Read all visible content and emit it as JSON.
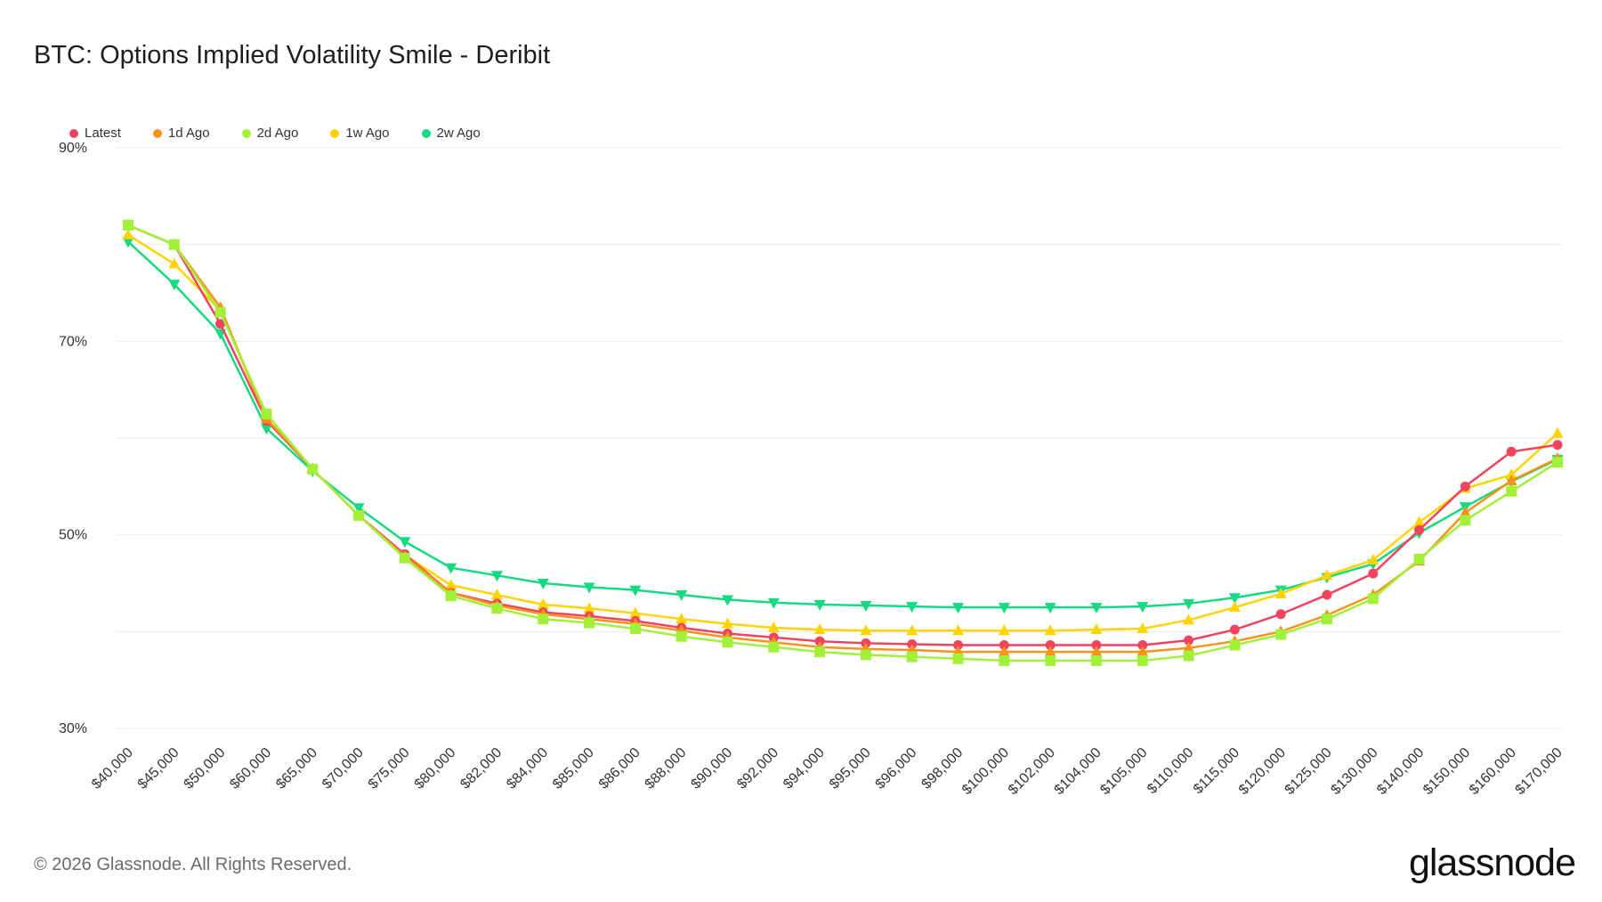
{
  "title": "BTC: Options Implied Volatility Smile - Deribit",
  "footer": "© 2026 Glassnode. All Rights Reserved.",
  "logo": "glassnode",
  "chart_data": {
    "type": "line",
    "title": "BTC: Options Implied Volatility Smile - Deribit",
    "xlabel": "",
    "ylabel": "",
    "ylim": [
      30,
      90
    ],
    "y_ticks": [
      "30%",
      "50%",
      "70%",
      "90%"
    ],
    "grid": true,
    "legend_position": "top-left",
    "categories": [
      "$40,000",
      "$45,000",
      "$50,000",
      "$60,000",
      "$65,000",
      "$70,000",
      "$75,000",
      "$80,000",
      "$82,000",
      "$84,000",
      "$85,000",
      "$86,000",
      "$88,000",
      "$90,000",
      "$92,000",
      "$94,000",
      "$95,000",
      "$96,000",
      "$98,000",
      "$100,000",
      "$102,000",
      "$104,000",
      "$105,000",
      "$110,000",
      "$115,000",
      "$120,000",
      "$125,000",
      "$130,000",
      "$140,000",
      "$150,000",
      "$160,000",
      "$170,000"
    ],
    "series": [
      {
        "name": "Latest",
        "color": "#f0435e",
        "marker": "circle",
        "values": [
          82.0,
          80.0,
          71.8,
          61.8,
          56.8,
          52.0,
          48.0,
          44.0,
          42.9,
          42.0,
          41.6,
          41.1,
          40.4,
          39.8,
          39.4,
          39.0,
          38.8,
          38.7,
          38.6,
          38.6,
          38.6,
          38.6,
          38.6,
          39.1,
          40.2,
          41.8,
          43.8,
          46.0,
          50.5,
          55.0,
          58.6,
          59.3
        ]
      },
      {
        "name": "1d Ago",
        "color": "#f7931a",
        "marker": "triangle",
        "values": [
          82.0,
          80.0,
          73.5,
          62.0,
          56.8,
          52.0,
          47.8,
          44.0,
          42.7,
          41.8,
          41.3,
          40.8,
          40.1,
          39.4,
          38.9,
          38.4,
          38.2,
          38.1,
          37.9,
          37.9,
          37.9,
          37.9,
          37.9,
          38.3,
          39.0,
          40.0,
          41.7,
          43.8,
          47.3,
          52.3,
          55.6,
          57.9
        ]
      },
      {
        "name": "2d Ago",
        "color": "#a3f03a",
        "marker": "square",
        "values": [
          82.0,
          80.0,
          73.0,
          62.5,
          56.8,
          52.0,
          47.6,
          43.7,
          42.4,
          41.3,
          40.9,
          40.3,
          39.5,
          38.9,
          38.4,
          37.9,
          37.6,
          37.4,
          37.2,
          37.0,
          37.0,
          37.0,
          37.0,
          37.5,
          38.6,
          39.7,
          41.3,
          43.4,
          47.5,
          51.5,
          54.5,
          57.5
        ]
      },
      {
        "name": "1w Ago",
        "color": "#ffd400",
        "marker": "triangle",
        "values": [
          81.0,
          78.0,
          73.2,
          62.0,
          56.8,
          52.0,
          47.9,
          44.8,
          43.8,
          42.8,
          42.4,
          41.9,
          41.3,
          40.8,
          40.4,
          40.2,
          40.1,
          40.1,
          40.1,
          40.1,
          40.1,
          40.2,
          40.3,
          41.2,
          42.5,
          43.9,
          45.8,
          47.4,
          51.3,
          54.8,
          56.2,
          60.5
        ]
      },
      {
        "name": "2w Ago",
        "color": "#17d982",
        "marker": "triangle-down",
        "values": [
          80.3,
          75.9,
          70.8,
          61.0,
          56.6,
          52.8,
          49.3,
          46.6,
          45.8,
          45.0,
          44.6,
          44.3,
          43.8,
          43.3,
          43.0,
          42.8,
          42.7,
          42.6,
          42.5,
          42.5,
          42.5,
          42.5,
          42.6,
          42.9,
          43.5,
          44.3,
          45.6,
          47.0,
          50.2,
          52.9,
          55.5,
          57.8
        ]
      }
    ]
  }
}
